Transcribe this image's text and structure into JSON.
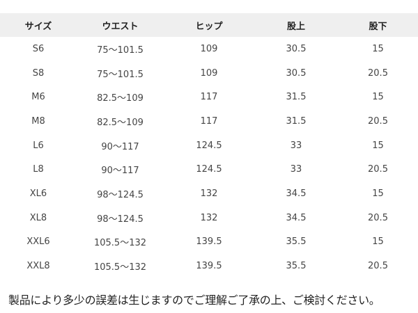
{
  "table": {
    "headers": [
      "サイズ",
      "ウエスト",
      "ヒップ",
      "股上",
      "股下"
    ],
    "rows": [
      [
        "S6",
        "75～101.5",
        "109",
        "30.5",
        "15"
      ],
      [
        "S8",
        "75～101.5",
        "109",
        "30.5",
        "20.5"
      ],
      [
        "M6",
        "82.5～109",
        "117",
        "31.5",
        "15"
      ],
      [
        "M8",
        "82.5～109",
        "117",
        "31.5",
        "20.5"
      ],
      [
        "L6",
        "90～117",
        "124.5",
        "33",
        "15"
      ],
      [
        "L8",
        "90～117",
        "124.5",
        "33",
        "20.5"
      ],
      [
        "XL6",
        "98～124.5",
        "132",
        "34.5",
        "15"
      ],
      [
        "XL8",
        "98～124.5",
        "132",
        "34.5",
        "20.5"
      ],
      [
        "XXL6",
        "105.5～132",
        "139.5",
        "35.5",
        "15"
      ],
      [
        "XXL8",
        "105.5～132",
        "139.5",
        "35.5",
        "20.5"
      ]
    ],
    "header_bg": "#efefef"
  },
  "note": "製品により多少の誤差は生じますのでご理解ご了承の上、ご検討ください。"
}
